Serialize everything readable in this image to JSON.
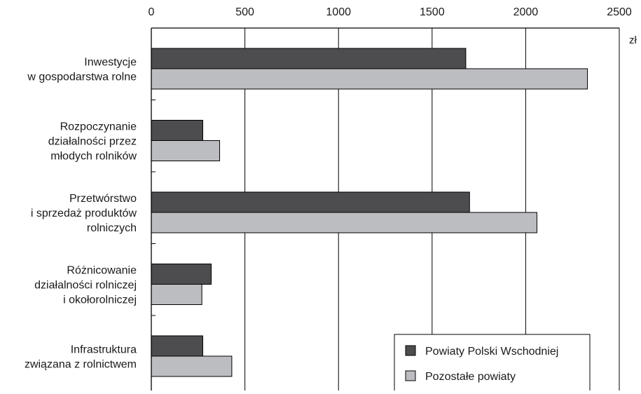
{
  "chart_data": {
    "type": "bar",
    "orientation": "horizontal",
    "unit": "zł",
    "categories": [
      [
        "Inwestycje",
        "w gospodarstwa rolne"
      ],
      [
        "Rozpoczynanie",
        "działalności przez",
        "młodych rolników"
      ],
      [
        "Przetwórstwo",
        "i sprzedaż produktów",
        "rolniczych"
      ],
      [
        "Różnicowanie",
        "działalności rolniczej",
        "i okołorolniczej"
      ],
      [
        "Infrastruktura",
        "związana z rolnictwem"
      ]
    ],
    "series": [
      {
        "name": "Powiaty Polski Wschodniej",
        "color": "#4d4d4f",
        "values": [
          1680,
          275,
          1700,
          320,
          275
        ]
      },
      {
        "name": "Pozostałe powiaty",
        "color": "#bcbdc0",
        "values": [
          2330,
          365,
          2060,
          270,
          430
        ]
      }
    ],
    "xlim": [
      0,
      2500
    ],
    "xticks": [
      "0",
      "500",
      "1000",
      "1500",
      "2000",
      "2500"
    ],
    "grid": true,
    "legend_position": "bottom-right",
    "axis_position": "top"
  }
}
